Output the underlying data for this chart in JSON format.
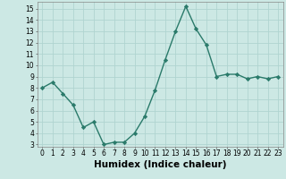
{
  "x": [
    0,
    1,
    2,
    3,
    4,
    5,
    6,
    7,
    8,
    9,
    10,
    11,
    12,
    13,
    14,
    15,
    16,
    17,
    18,
    19,
    20,
    21,
    22,
    23
  ],
  "y": [
    8.0,
    8.5,
    7.5,
    6.5,
    4.5,
    5.0,
    3.0,
    3.2,
    3.2,
    4.0,
    5.5,
    7.8,
    10.5,
    13.0,
    15.2,
    13.2,
    11.8,
    9.0,
    9.2,
    9.2,
    8.8,
    9.0,
    8.8,
    9.0
  ],
  "line_color": "#2a7a6a",
  "marker": "D",
  "marker_size": 2.2,
  "bg_color": "#cce8e4",
  "grid_color": "#b0d4d0",
  "xlabel": "Humidex (Indice chaleur)",
  "xlim": [
    -0.5,
    23.5
  ],
  "ylim": [
    2.8,
    15.6
  ],
  "yticks": [
    3,
    4,
    5,
    6,
    7,
    8,
    9,
    10,
    11,
    12,
    13,
    14,
    15
  ],
  "xtick_labels": [
    "0",
    "1",
    "2",
    "3",
    "4",
    "5",
    "6",
    "7",
    "8",
    "9",
    "10",
    "11",
    "12",
    "13",
    "14",
    "15",
    "16",
    "17",
    "18",
    "19",
    "20",
    "21",
    "22",
    "23"
  ],
  "tick_fontsize": 5.5,
  "xlabel_fontsize": 7.5,
  "line_width": 1.0
}
